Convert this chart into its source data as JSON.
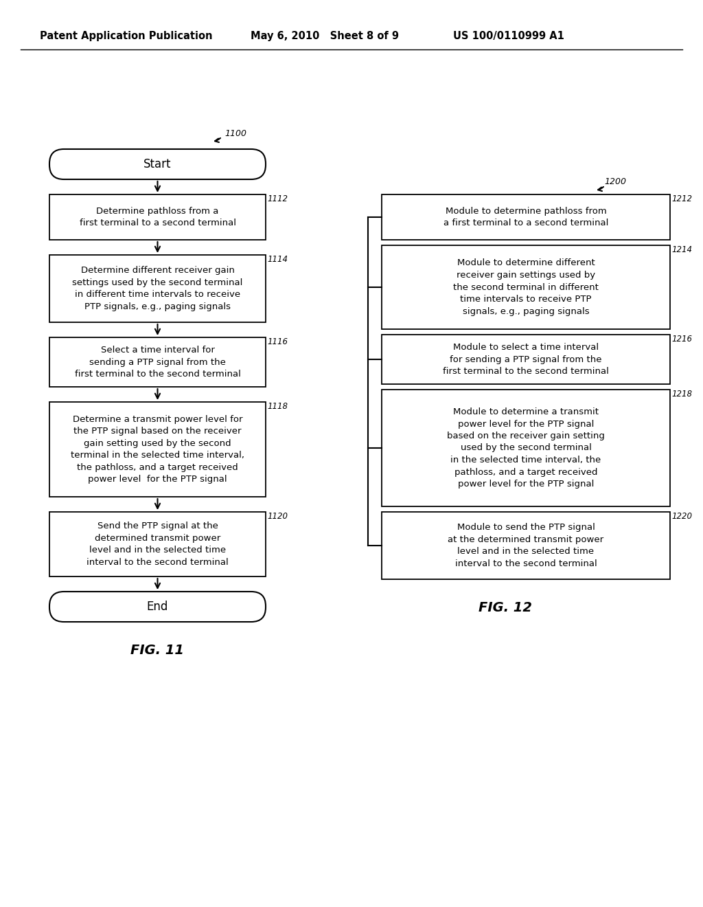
{
  "header_left": "Patent Application Publication",
  "header_mid": "May 6, 2010   Sheet 8 of 9",
  "header_right": "US 100/0110999 A1",
  "fig11_label": "FIG. 11",
  "fig12_label": "FIG. 12",
  "fig11_number": "1100",
  "fig12_number": "1200",
  "left_box_texts": [
    "Determine pathloss from a\nfirst terminal to a second terminal",
    "Determine different receiver gain\nsettings used by the second terminal\nin different time intervals to receive\nPTP signals, e.g., paging signals",
    "Select a time interval for\nsending a PTP signal from the\nfirst terminal to the second terminal",
    "Determine a transmit power level for\nthe PTP signal based on the receiver\ngain setting used by the second\nterminal in the selected time interval,\nthe pathloss, and a target received\npower level  for the PTP signal",
    "Send the PTP signal at the\ndetermined transmit power\nlevel and in the selected time\ninterval to the second terminal"
  ],
  "left_box_ids": [
    "1112",
    "1114",
    "1116",
    "1118",
    "1120"
  ],
  "right_box_texts": [
    "Module to determine pathloss from\na first terminal to a second terminal",
    "Module to determine different\nreceiver gain settings used by\nthe second terminal in different\ntime intervals to receive PTP\nsignals, e.g., paging signals",
    "Module to select a time interval\nfor sending a PTP signal from the\nfirst terminal to the second terminal",
    "Module to determine a transmit\npower level for the PTP signal\nbased on the receiver gain setting\nused by the second terminal\nin the selected time interval, the\npathloss, and a target received\npower level for the PTP signal",
    "Module to send the PTP signal\nat the determined transmit power\nlevel and in the selected time\ninterval to the second terminal"
  ],
  "right_box_ids": [
    "1212",
    "1214",
    "1216",
    "1218",
    "1220"
  ],
  "bg_color": "#ffffff",
  "box_edge_color": "#000000",
  "text_color": "#000000"
}
